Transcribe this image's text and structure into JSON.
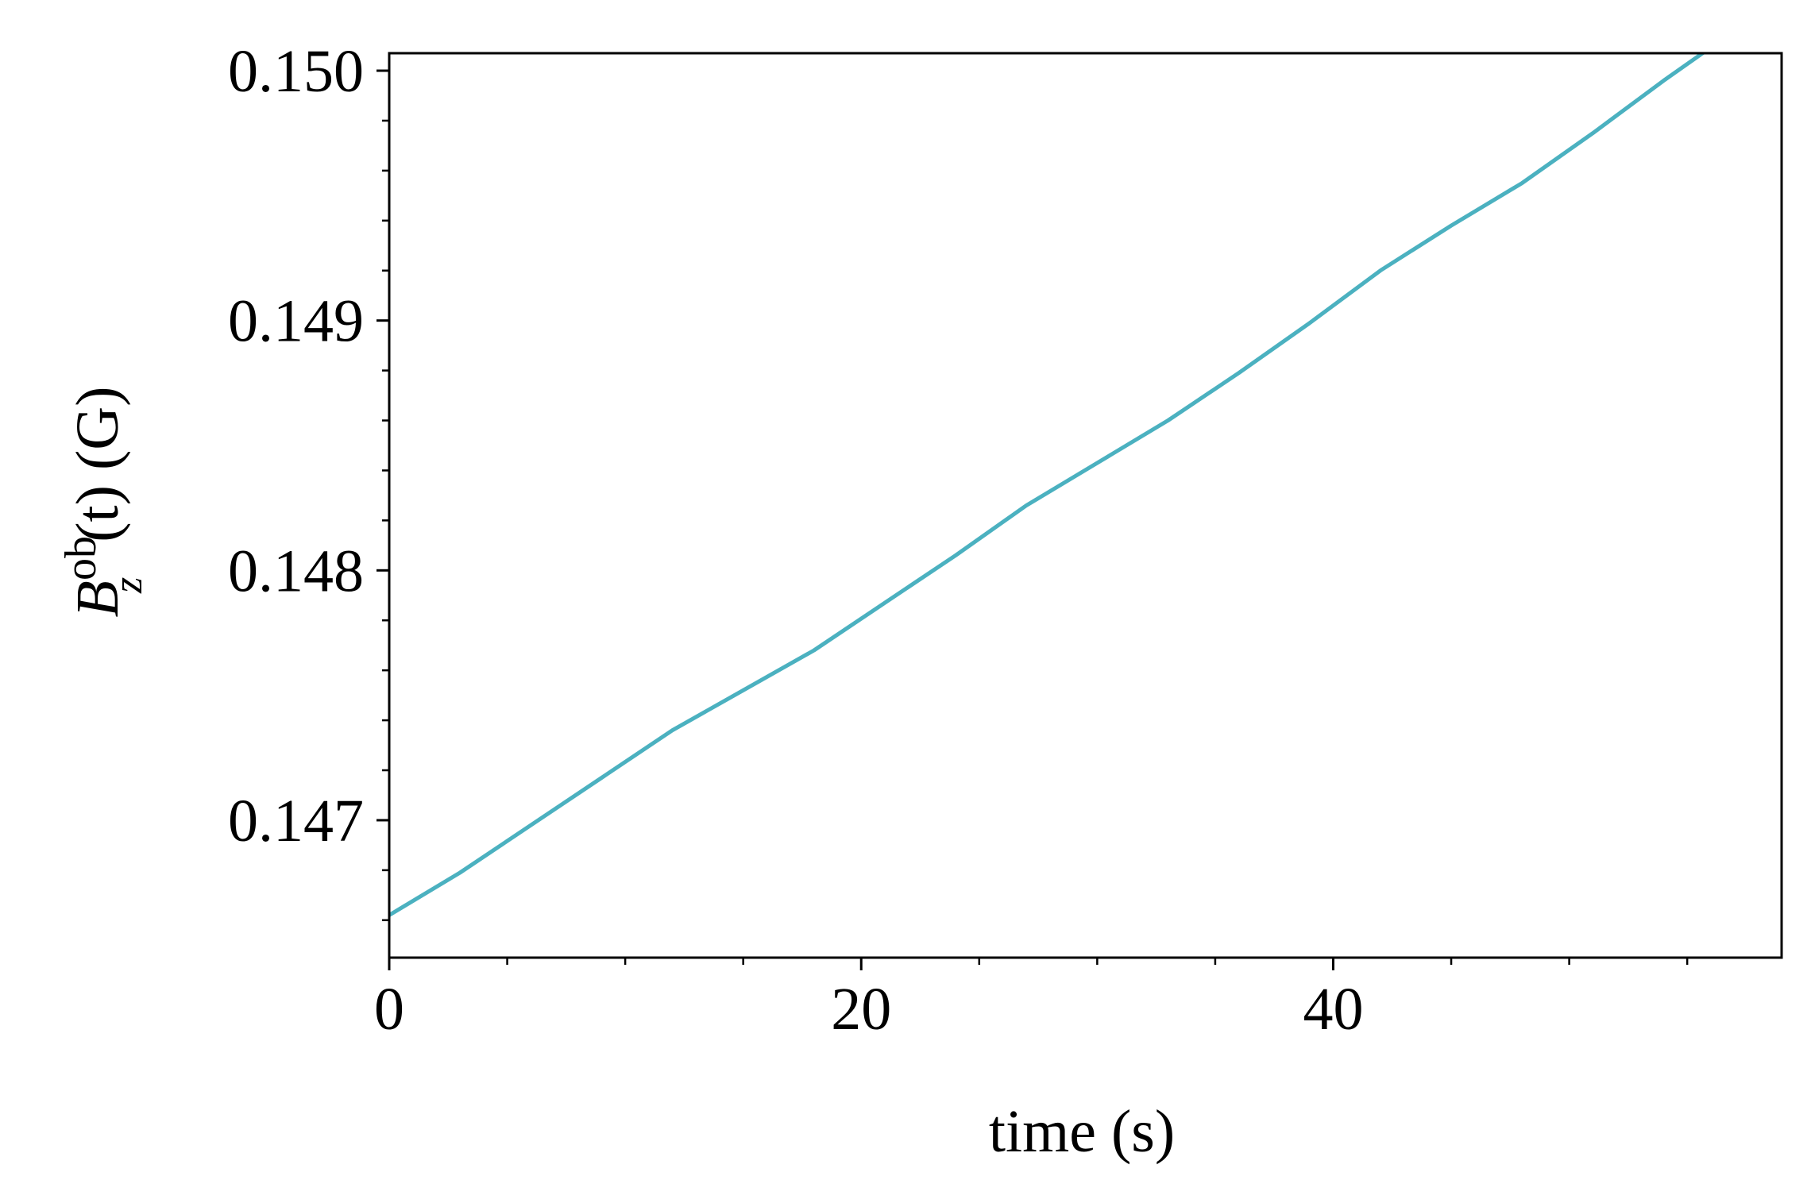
{
  "chart_data": {
    "type": "line",
    "xlabel": "time (s)",
    "ylabel": {
      "base": "B",
      "subscript": "z",
      "superscript": "ob",
      "argument": "(t)",
      "unit": " (G)"
    },
    "xlim": [
      0,
      59
    ],
    "ylim": [
      0.14645,
      0.15007
    ],
    "x_ticks": [
      0,
      20,
      40
    ],
    "x_tick_labels": [
      "0",
      "20",
      "40"
    ],
    "x_minor_step": 5,
    "y_ticks": [
      0.147,
      0.148,
      0.149,
      0.15
    ],
    "y_tick_labels": [
      "0.147",
      "0.148",
      "0.149",
      "0.150"
    ],
    "y_minor_step": 0.0002,
    "grid": false,
    "series": [
      {
        "color": "#4bb1c0",
        "x": [
          0,
          3,
          6,
          9,
          12,
          15,
          18,
          21,
          24,
          27,
          30,
          33,
          36,
          39,
          42,
          45,
          48,
          51,
          54,
          57,
          59
        ],
        "y": [
          0.14662,
          0.14679,
          0.14698,
          0.14717,
          0.14736,
          0.14752,
          0.14768,
          0.14787,
          0.14806,
          0.14826,
          0.14843,
          0.1486,
          0.14879,
          0.14899,
          0.1492,
          0.14938,
          0.14955,
          0.14975,
          0.14996,
          0.15016,
          0.1503
        ]
      }
    ]
  }
}
